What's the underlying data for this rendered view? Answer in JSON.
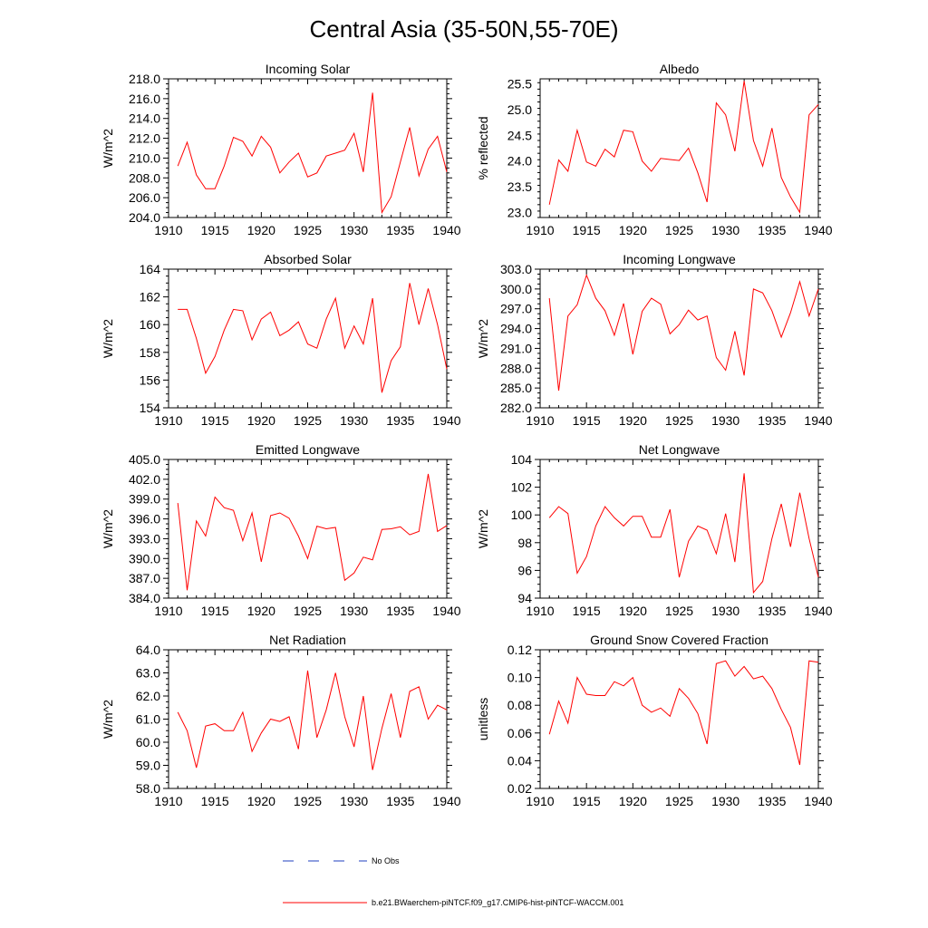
{
  "title": "Central Asia (35-50N,55-70E)",
  "colors": {
    "series": "#ff0000",
    "no_obs": "#1f3fbf",
    "axis": "#000000"
  },
  "legend": [
    {
      "label": "No Obs",
      "style": "dashed",
      "color": "#1f3fbf"
    },
    {
      "label": "b.e21.BWaerchem-piNTCF.f09_g17.CMIP6-hist-piNTCF-WACCM.001",
      "style": "solid",
      "color": "#ff0000"
    }
  ],
  "chart_data": [
    {
      "type": "line",
      "title": "Incoming Solar",
      "ylabel": "W/m^2",
      "xlim": [
        1910,
        1940
      ],
      "ylim": [
        204,
        218
      ],
      "xticks": [
        "1910",
        "1915",
        "1920",
        "1925",
        "1930",
        "1935",
        "1940"
      ],
      "yticks": [
        "204.0",
        "206.0",
        "208.0",
        "210.0",
        "212.0",
        "214.0",
        "216.0",
        "218.0"
      ],
      "x": [
        1911,
        1912,
        1913,
        1914,
        1915,
        1916,
        1917,
        1918,
        1919,
        1920,
        1921,
        1922,
        1923,
        1924,
        1925,
        1926,
        1927,
        1928,
        1929,
        1930,
        1931,
        1932,
        1933,
        1934,
        1935,
        1936,
        1937,
        1938,
        1939,
        1940
      ],
      "y": [
        209.2,
        211.6,
        208.3,
        206.9,
        206.9,
        209.2,
        212.1,
        211.7,
        210.2,
        212.2,
        211.1,
        208.5,
        209.6,
        210.5,
        208.1,
        208.5,
        210.2,
        210.5,
        210.8,
        212.5,
        208.6,
        216.6,
        204.5,
        206.1,
        209.6,
        213.1,
        208.2,
        210.9,
        212.2,
        208.6
      ]
    },
    {
      "type": "line",
      "title": "Albedo",
      "ylabel": "% reflected",
      "xlim": [
        1910,
        1940
      ],
      "ylim": [
        22.9,
        25.6
      ],
      "xticks": [
        "1910",
        "1915",
        "1920",
        "1925",
        "1930",
        "1935",
        "1940"
      ],
      "yticks": [
        "23.0",
        "23.5",
        "24.0",
        "24.5",
        "25.0",
        "25.5"
      ],
      "x": [
        1911,
        1912,
        1913,
        1914,
        1915,
        1916,
        1917,
        1918,
        1919,
        1920,
        1921,
        1922,
        1923,
        1924,
        1925,
        1926,
        1927,
        1928,
        1929,
        1930,
        1931,
        1932,
        1933,
        1934,
        1935,
        1936,
        1937,
        1938,
        1939,
        1940
      ],
      "y": [
        23.15,
        24.02,
        23.8,
        24.6,
        23.98,
        23.9,
        24.23,
        24.08,
        24.6,
        24.57,
        24.0,
        23.8,
        24.05,
        24.03,
        24.01,
        24.25,
        23.77,
        23.2,
        25.13,
        24.9,
        24.19,
        25.56,
        24.4,
        23.9,
        24.64,
        23.68,
        23.3,
        23.0,
        24.9,
        25.1
      ]
    },
    {
      "type": "line",
      "title": "Absorbed Solar",
      "ylabel": "W/m^2",
      "xlim": [
        1910,
        1940
      ],
      "ylim": [
        154,
        164
      ],
      "xticks": [
        "1910",
        "1915",
        "1920",
        "1925",
        "1930",
        "1935",
        "1940"
      ],
      "yticks": [
        "154",
        "156",
        "158",
        "160",
        "162",
        "164"
      ],
      "x": [
        1911,
        1912,
        1913,
        1914,
        1915,
        1916,
        1917,
        1918,
        1919,
        1920,
        1921,
        1922,
        1923,
        1924,
        1925,
        1926,
        1927,
        1928,
        1929,
        1930,
        1931,
        1932,
        1933,
        1934,
        1935,
        1936,
        1937,
        1938,
        1939,
        1940
      ],
      "y": [
        161.1,
        161.1,
        159.0,
        156.5,
        157.7,
        159.6,
        161.1,
        161.0,
        158.9,
        160.4,
        160.9,
        159.2,
        159.6,
        160.2,
        158.6,
        158.3,
        160.4,
        161.9,
        158.3,
        159.9,
        158.6,
        161.9,
        155.1,
        157.4,
        158.4,
        163.0,
        160.0,
        162.6,
        160.0,
        156.8
      ]
    },
    {
      "type": "line",
      "title": "Incoming Longwave",
      "ylabel": "W/m^2",
      "xlim": [
        1910,
        1940
      ],
      "ylim": [
        282,
        303
      ],
      "xticks": [
        "1910",
        "1915",
        "1920",
        "1925",
        "1930",
        "1935",
        "1940"
      ],
      "yticks": [
        "282.0",
        "285.0",
        "288.0",
        "291.0",
        "294.0",
        "297.0",
        "300.0",
        "303.0"
      ],
      "x": [
        1911,
        1912,
        1913,
        1914,
        1915,
        1916,
        1917,
        1918,
        1919,
        1920,
        1921,
        1922,
        1923,
        1924,
        1925,
        1926,
        1927,
        1928,
        1929,
        1930,
        1931,
        1932,
        1933,
        1934,
        1935,
        1936,
        1937,
        1938,
        1939,
        1940
      ],
      "y": [
        298.6,
        284.6,
        295.9,
        297.6,
        302.1,
        298.6,
        296.7,
        293.0,
        297.8,
        290.1,
        296.6,
        298.6,
        297.7,
        293.2,
        294.6,
        296.8,
        295.3,
        295.9,
        289.6,
        287.7,
        293.6,
        286.9,
        300.0,
        299.4,
        296.7,
        292.7,
        296.4,
        301.1,
        295.9,
        300.0
      ]
    },
    {
      "type": "line",
      "title": "Emitted Longwave",
      "ylabel": "W/m^2",
      "xlim": [
        1910,
        1940
      ],
      "ylim": [
        384,
        405
      ],
      "xticks": [
        "1910",
        "1915",
        "1920",
        "1925",
        "1930",
        "1935",
        "1940"
      ],
      "yticks": [
        "384.0",
        "387.0",
        "390.0",
        "393.0",
        "396.0",
        "399.0",
        "402.0",
        "405.0"
      ],
      "x": [
        1911,
        1912,
        1913,
        1914,
        1915,
        1916,
        1917,
        1918,
        1919,
        1920,
        1921,
        1922,
        1923,
        1924,
        1925,
        1926,
        1927,
        1928,
        1929,
        1930,
        1931,
        1932,
        1933,
        1934,
        1935,
        1936,
        1937,
        1938,
        1939,
        1940
      ],
      "y": [
        398.4,
        385.2,
        395.7,
        393.4,
        399.3,
        397.7,
        397.3,
        392.7,
        396.9,
        389.5,
        396.5,
        396.9,
        396.1,
        393.4,
        390.0,
        394.9,
        394.5,
        394.7,
        386.7,
        387.8,
        390.2,
        389.8,
        394.4,
        394.5,
        394.8,
        393.6,
        394.1,
        402.8,
        394.1,
        395.0
      ]
    },
    {
      "type": "line",
      "title": "Net Longwave",
      "ylabel": "W/m^2",
      "xlim": [
        1910,
        1940
      ],
      "ylim": [
        94,
        104
      ],
      "xticks": [
        "1910",
        "1915",
        "1920",
        "1925",
        "1930",
        "1935",
        "1940"
      ],
      "yticks": [
        "94",
        "96",
        "98",
        "100",
        "102",
        "104"
      ],
      "x": [
        1911,
        1912,
        1913,
        1914,
        1915,
        1916,
        1917,
        1918,
        1919,
        1920,
        1921,
        1922,
        1923,
        1924,
        1925,
        1926,
        1927,
        1928,
        1929,
        1930,
        1931,
        1932,
        1933,
        1934,
        1935,
        1936,
        1937,
        1938,
        1939,
        1940
      ],
      "y": [
        99.8,
        100.6,
        100.1,
        95.8,
        97.0,
        99.2,
        100.6,
        99.8,
        99.2,
        99.9,
        99.9,
        98.4,
        98.4,
        100.4,
        95.5,
        98.1,
        99.2,
        98.9,
        97.2,
        100.1,
        96.6,
        103.0,
        94.4,
        95.2,
        98.3,
        100.8,
        97.7,
        101.6,
        98.3,
        95.5
      ]
    },
    {
      "type": "line",
      "title": "Net Radiation",
      "ylabel": "W/m^2",
      "xlim": [
        1910,
        1940
      ],
      "ylim": [
        58,
        64
      ],
      "xticks": [
        "1910",
        "1915",
        "1920",
        "1925",
        "1930",
        "1935",
        "1940"
      ],
      "yticks": [
        "58.0",
        "59.0",
        "60.0",
        "61.0",
        "62.0",
        "63.0",
        "64.0"
      ],
      "x": [
        1911,
        1912,
        1913,
        1914,
        1915,
        1916,
        1917,
        1918,
        1919,
        1920,
        1921,
        1922,
        1923,
        1924,
        1925,
        1926,
        1927,
        1928,
        1929,
        1930,
        1931,
        1932,
        1933,
        1934,
        1935,
        1936,
        1937,
        1938,
        1939,
        1940
      ],
      "y": [
        61.3,
        60.5,
        58.9,
        60.7,
        60.8,
        60.5,
        60.5,
        61.3,
        59.6,
        60.4,
        61.0,
        60.9,
        61.1,
        59.7,
        63.1,
        60.2,
        61.4,
        63.0,
        61.1,
        59.8,
        62.0,
        58.8,
        60.6,
        62.1,
        60.2,
        62.2,
        62.4,
        61.0,
        61.6,
        61.4
      ]
    },
    {
      "type": "line",
      "title": "Ground Snow Covered Fraction",
      "ylabel": "unitless",
      "xlim": [
        1910,
        1940
      ],
      "ylim": [
        0.02,
        0.12
      ],
      "xticks": [
        "1910",
        "1915",
        "1920",
        "1925",
        "1930",
        "1935",
        "1940"
      ],
      "yticks": [
        "0.02",
        "0.04",
        "0.06",
        "0.08",
        "0.10",
        "0.12"
      ],
      "x": [
        1911,
        1912,
        1913,
        1914,
        1915,
        1916,
        1917,
        1918,
        1919,
        1920,
        1921,
        1922,
        1923,
        1924,
        1925,
        1926,
        1927,
        1928,
        1929,
        1930,
        1931,
        1932,
        1933,
        1934,
        1935,
        1936,
        1937,
        1938,
        1939,
        1940
      ],
      "y": [
        0.059,
        0.083,
        0.067,
        0.1,
        0.088,
        0.087,
        0.087,
        0.097,
        0.094,
        0.1,
        0.08,
        0.075,
        0.078,
        0.072,
        0.092,
        0.085,
        0.074,
        0.052,
        0.11,
        0.112,
        0.101,
        0.108,
        0.099,
        0.101,
        0.092,
        0.077,
        0.064,
        0.037,
        0.112,
        0.111
      ]
    }
  ]
}
